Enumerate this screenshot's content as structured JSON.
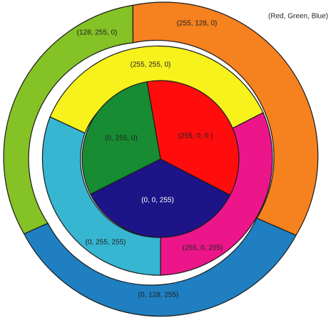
{
  "legend": "(Red, Green, Blue)",
  "inner_ring": {
    "segments": [
      {
        "id": "red",
        "label": "(255, 0, 0 )",
        "color": "#ff0d0d",
        "text_color": "dark"
      },
      {
        "id": "blue",
        "label": "(0, 0, 255)",
        "color": "#1c1487",
        "text_color": "light"
      },
      {
        "id": "green",
        "label": "(0, 255, 0)",
        "color": "#178c32",
        "text_color": "dark"
      }
    ]
  },
  "middle_ring": {
    "segments": [
      {
        "id": "yellow",
        "label": "(255, 255, 0)",
        "color": "#f7f21c",
        "text_color": "dark"
      },
      {
        "id": "magenta",
        "label": "(255, 0, 255)",
        "color": "#ec168a",
        "text_color": "dark"
      },
      {
        "id": "cyan",
        "label": "(0, 255, 255)",
        "color": "#37b6d2",
        "text_color": "dark"
      }
    ]
  },
  "outer_ring": {
    "segments": [
      {
        "id": "orange",
        "label": "(255, 128, 0)",
        "color": "#f5811f",
        "text_color": "dark"
      },
      {
        "id": "azure",
        "label": "(0, 128, 255)",
        "color": "#1f7fc0",
        "text_color": "dark"
      },
      {
        "id": "chartreuse",
        "label": "(128, 255, 0)",
        "color": "#84c225",
        "text_color": "dark"
      }
    ]
  }
}
